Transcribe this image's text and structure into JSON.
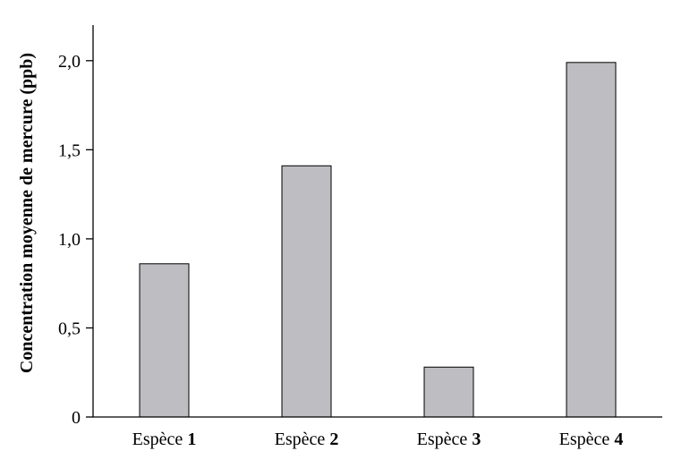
{
  "chart_data": {
    "type": "bar",
    "title": "",
    "xlabel": "",
    "ylabel": "Concentration moyenne de mercure (ppb)",
    "categories": [
      {
        "prefix": "Espèce ",
        "number": "1"
      },
      {
        "prefix": "Espèce ",
        "number": "2"
      },
      {
        "prefix": "Espèce ",
        "number": "3"
      },
      {
        "prefix": "Espèce ",
        "number": "4"
      }
    ],
    "values": [
      0.86,
      1.41,
      0.28,
      1.99
    ],
    "ylim": [
      0,
      2.2
    ],
    "yticks": [
      0,
      0.5,
      1.0,
      1.5,
      2.0
    ],
    "ytick_labels": [
      "0",
      "0,5",
      "1,0",
      "1,5",
      "2,0"
    ],
    "bar_color": "#bdbdc2",
    "grid": false
  }
}
